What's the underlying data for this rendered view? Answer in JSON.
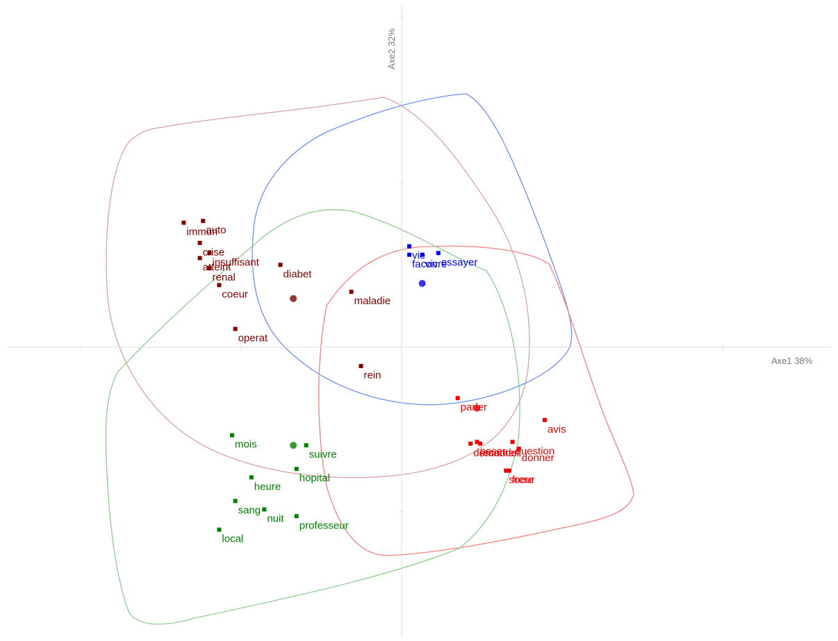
{
  "chart_data": {
    "type": "scatter",
    "grid": false,
    "legend": "none",
    "xlabel": "Axe1",
    "xlabel_pct": "38%",
    "ylabel": "Axe2",
    "ylabel_pct": "32%",
    "xlim": [
      -1.24,
      1.36
    ],
    "ylim": [
      -1.7,
      2.1
    ],
    "series": [
      {
        "color": "#800000",
        "centroid": [
          -0.33,
          0.33
        ],
        "points": [
          {
            "label": "immun",
            "x": -0.67,
            "y": 0.78
          },
          {
            "label": "auto",
            "x": -0.61,
            "y": 0.79
          },
          {
            "label": "crise",
            "x": -0.62,
            "y": 0.66
          },
          {
            "label": "insuffisant",
            "x": -0.59,
            "y": 0.6
          },
          {
            "label": "atteint",
            "x": -0.62,
            "y": 0.57
          },
          {
            "label": "renal",
            "x": -0.59,
            "y": 0.51
          },
          {
            "label": "coeur",
            "x": -0.56,
            "y": 0.41
          },
          {
            "label": "diabet",
            "x": -0.37,
            "y": 0.53
          },
          {
            "label": "maladie",
            "x": -0.15,
            "y": 0.37
          },
          {
            "label": "operat",
            "x": -0.51,
            "y": 0.15
          },
          {
            "label": "rein",
            "x": -0.12,
            "y": -0.07
          }
        ]
      },
      {
        "color": "#0000ee",
        "centroid": [
          0.07,
          0.42
        ],
        "points": [
          {
            "label": "vie",
            "x": 0.03,
            "y": 0.64
          },
          {
            "label": "essayer",
            "x": 0.12,
            "y": 0.6
          },
          {
            "label": "vivre",
            "x": 0.07,
            "y": 0.59
          },
          {
            "label": "facon",
            "x": 0.03,
            "y": 0.59
          }
        ]
      },
      {
        "color": "#ee0000",
        "centroid": [
          0.24,
          -0.32
        ],
        "points": [
          {
            "label": "parler",
            "x": 0.18,
            "y": -0.26
          },
          {
            "label": "demander",
            "x": 0.22,
            "y": -0.53
          },
          {
            "label": "ecouter",
            "x": 0.25,
            "y": -0.53
          },
          {
            "label": "avis",
            "x": 0.45,
            "y": -0.39
          },
          {
            "label": "donner",
            "x": 0.37,
            "y": -0.56
          },
          {
            "label": "poser",
            "x": 0.24,
            "y": -0.52
          },
          {
            "label": "question",
            "x": 0.35,
            "y": -0.52
          },
          {
            "label": "soeur",
            "x": 0.33,
            "y": -0.69
          },
          {
            "label": "frere",
            "x": 0.34,
            "y": -0.69
          }
        ]
      },
      {
        "color": "#008000",
        "centroid": [
          -0.33,
          -0.54
        ],
        "points": [
          {
            "label": "mois",
            "x": -0.52,
            "y": -0.48
          },
          {
            "label": "suivre",
            "x": -0.29,
            "y": -0.54
          },
          {
            "label": "hopital",
            "x": -0.32,
            "y": -0.68
          },
          {
            "label": "heure",
            "x": -0.46,
            "y": -0.73
          },
          {
            "label": "sang",
            "x": -0.51,
            "y": -0.87
          },
          {
            "label": "nuit",
            "x": -0.42,
            "y": -0.92
          },
          {
            "label": "professeur",
            "x": -0.32,
            "y": -0.96
          },
          {
            "label": "local",
            "x": -0.56,
            "y": -1.04
          }
        ]
      }
    ]
  }
}
